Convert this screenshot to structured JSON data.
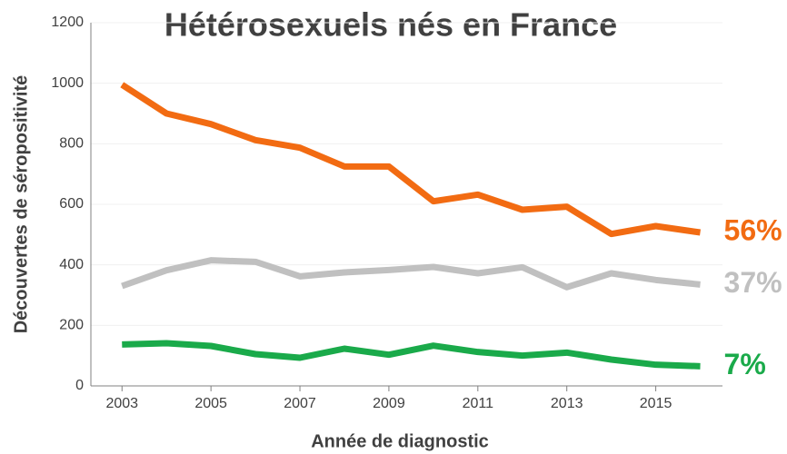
{
  "chart_data": {
    "type": "line",
    "title": "Hétérosexuels nés en France",
    "x_label": "Année de diagnostic",
    "y_label": "Découvertes de séropositivité",
    "x": [
      2003,
      2004,
      2005,
      2006,
      2007,
      2008,
      2009,
      2010,
      2011,
      2012,
      2013,
      2014,
      2015,
      2016
    ],
    "series": [
      {
        "color": "#f26b12",
        "end_label": "56%",
        "values": [
          995,
          900,
          865,
          812,
          787,
          725,
          725,
          610,
          632,
          582,
          592,
          502,
          528,
          507
        ]
      },
      {
        "color": "#c0c0c0",
        "end_label": "37%",
        "values": [
          330,
          382,
          415,
          410,
          362,
          375,
          383,
          393,
          372,
          392,
          326,
          372,
          350,
          335
        ]
      },
      {
        "color": "#1aaa4a",
        "end_label": "7%",
        "values": [
          137,
          141,
          132,
          105,
          93,
          123,
          103,
          133,
          112,
          100,
          110,
          87,
          70,
          65
        ]
      }
    ],
    "xlim": [
      2002.3,
      2016.5
    ],
    "xticks": [
      2003,
      2005,
      2007,
      2009,
      2011,
      2013,
      2015
    ],
    "ylim": [
      0,
      1200
    ],
    "yticks": [
      0,
      200,
      400,
      600,
      800,
      1000,
      1200
    ],
    "grid": true
  }
}
